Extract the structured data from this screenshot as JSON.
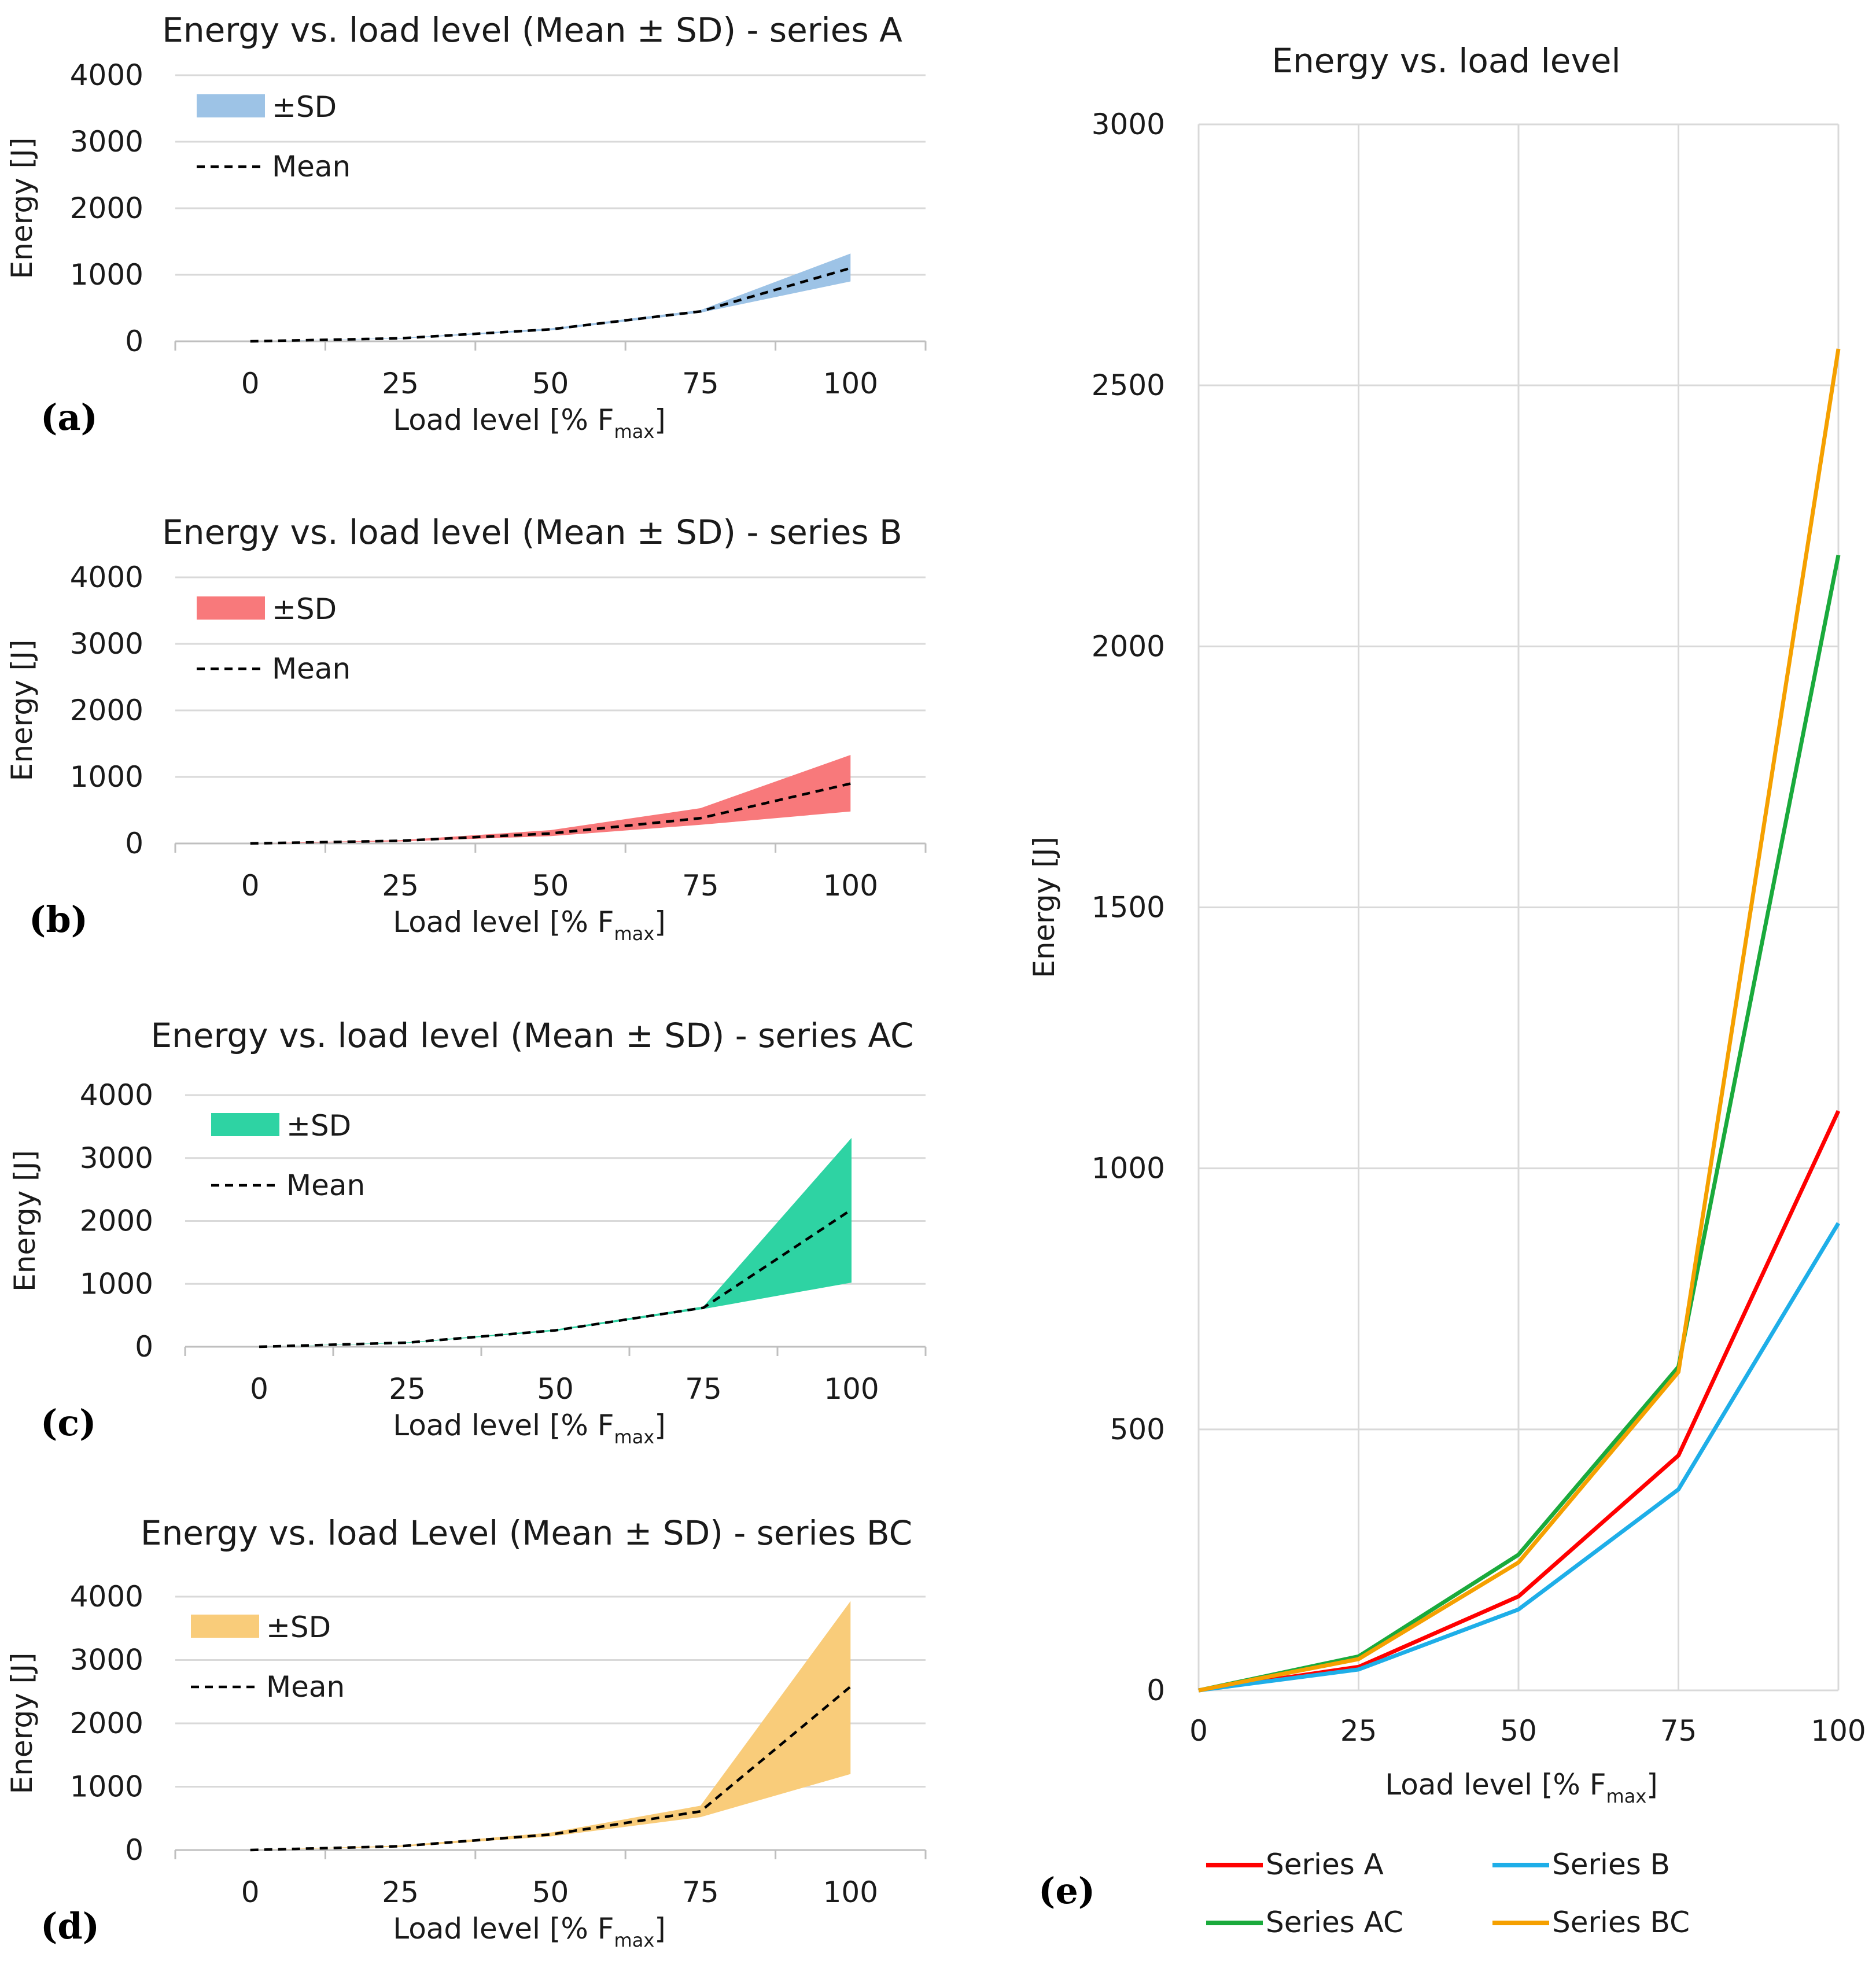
{
  "chart_data": [
    {
      "panel": "(a)",
      "type": "area",
      "title": "Energy vs. load level (Mean ± SD) - series A",
      "xlabel": "Load level [% F",
      "xlabel_sub": "max",
      "xlabel_end": "]",
      "ylabel": "Energy [J]",
      "categories": [
        0,
        25,
        50,
        75,
        100
      ],
      "ylim": [
        0,
        4000
      ],
      "yticks": [
        0,
        1000,
        2000,
        3000,
        4000
      ],
      "color": "#9dc3e6",
      "legend": {
        "band": "±SD",
        "mean": "Mean"
      },
      "series": [
        {
          "name": "Mean",
          "values": [
            0,
            45,
            180,
            450,
            1100
          ]
        },
        {
          "name": "±SD",
          "lower": [
            0,
            40,
            165,
            430,
            900
          ],
          "upper": [
            0,
            50,
            195,
            470,
            1320
          ]
        }
      ]
    },
    {
      "panel": "(b)",
      "type": "area",
      "title": "Energy vs. load level (Mean ± SD) - series B",
      "xlabel": "Load level [% F",
      "xlabel_sub": "max",
      "xlabel_end": "]",
      "ylabel": "Energy [J]",
      "categories": [
        0,
        25,
        50,
        75,
        100
      ],
      "ylim": [
        0,
        4000
      ],
      "yticks": [
        0,
        1000,
        2000,
        3000,
        4000
      ],
      "color": "#f8797b",
      "legend": {
        "band": "±SD",
        "mean": "Mean"
      },
      "series": [
        {
          "name": "Mean",
          "values": [
            0,
            40,
            150,
            380,
            900
          ]
        },
        {
          "name": "±SD",
          "lower": [
            0,
            30,
            110,
            280,
            480
          ],
          "upper": [
            0,
            50,
            200,
            530,
            1330
          ]
        }
      ]
    },
    {
      "panel": "(c)",
      "type": "area",
      "title": "Energy vs. load level (Mean ± SD) - series AC",
      "xlabel": "Load level [% F",
      "xlabel_sub": "max",
      "xlabel_end": "]",
      "ylabel": "Energy [J]",
      "categories": [
        0,
        25,
        50,
        75,
        100
      ],
      "ylim": [
        0,
        4000
      ],
      "yticks": [
        0,
        1000,
        2000,
        3000,
        4000
      ],
      "color": "#2ed3a3",
      "legend": {
        "band": "±SD",
        "mean": "Mean"
      },
      "series": [
        {
          "name": "Mean",
          "values": [
            0,
            65,
            260,
            620,
            2180
          ]
        },
        {
          "name": "±SD",
          "lower": [
            0,
            60,
            250,
            600,
            1020
          ],
          "upper": [
            0,
            70,
            275,
            640,
            3320
          ]
        }
      ]
    },
    {
      "panel": "(d)",
      "type": "area",
      "title": "Energy vs. load Level (Mean ± SD) - series BC",
      "xlabel": "Load level [% F",
      "xlabel_sub": "max",
      "xlabel_end": "]",
      "ylabel": "Energy [J]",
      "categories": [
        0,
        25,
        50,
        75,
        100
      ],
      "ylim": [
        0,
        4000
      ],
      "yticks": [
        0,
        1000,
        2000,
        3000,
        4000
      ],
      "color": "#f9cc7a",
      "legend": {
        "band": "±SD",
        "mean": "Mean"
      },
      "series": [
        {
          "name": "Mean",
          "values": [
            0,
            60,
            245,
            610,
            2580
          ]
        },
        {
          "name": "±SD",
          "lower": [
            0,
            50,
            215,
            520,
            1200
          ],
          "upper": [
            0,
            70,
            275,
            700,
            3930
          ]
        }
      ]
    },
    {
      "panel": "(e)",
      "type": "line",
      "title": "Energy vs. load level",
      "xlabel": "Load level [% F",
      "xlabel_sub": "max",
      "xlabel_end": "]",
      "ylabel": "Energy [J]",
      "x": [
        0,
        25,
        50,
        75,
        100
      ],
      "ylim": [
        0,
        3000
      ],
      "yticks": [
        0,
        500,
        1000,
        1500,
        2000,
        2500,
        3000
      ],
      "grid": true,
      "legend_position": "bottom",
      "series": [
        {
          "name": "Series A",
          "color": "#ff0000",
          "values": [
            0,
            45,
            180,
            450,
            1110
          ]
        },
        {
          "name": "Series B",
          "color": "#1eaee8",
          "values": [
            0,
            40,
            155,
            385,
            895
          ]
        },
        {
          "name": "Series AC",
          "color": "#1aaa3c",
          "values": [
            0,
            65,
            260,
            620,
            2175
          ]
        },
        {
          "name": "Series BC",
          "color": "#f5a000",
          "values": [
            0,
            60,
            245,
            610,
            2570
          ]
        }
      ]
    }
  ]
}
